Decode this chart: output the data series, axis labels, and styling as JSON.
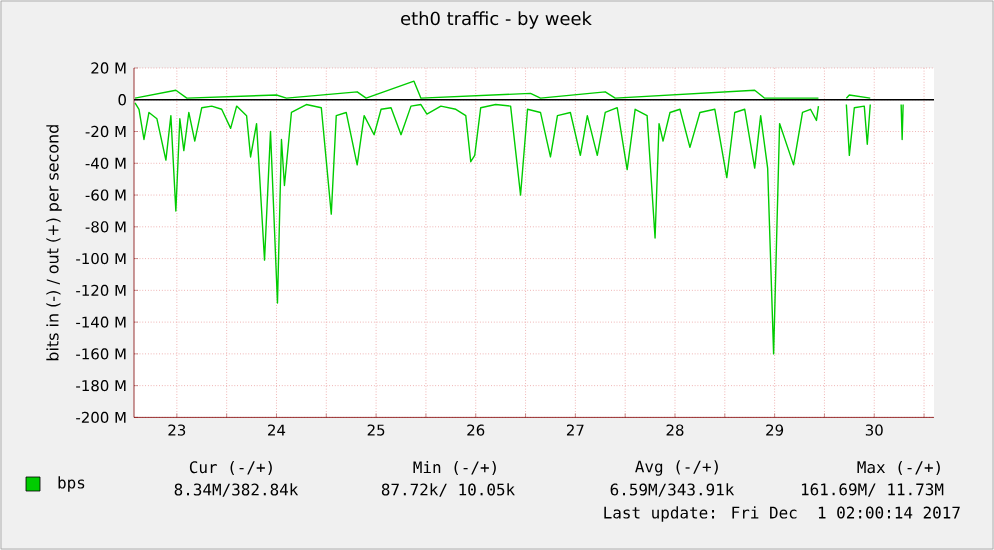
{
  "chart_data": {
    "type": "line",
    "title": "eth0 traffic - by week",
    "ylabel": "bits in (-) / out (+) per second",
    "xlim": [
      23.07,
      31.1
    ],
    "xticks": [
      {
        "value": 23.5,
        "label": "23"
      },
      {
        "value": 24,
        "label": null
      },
      {
        "value": 24.5,
        "label": "24"
      },
      {
        "value": 25,
        "label": null
      },
      {
        "value": 25.5,
        "label": "25"
      },
      {
        "value": 26,
        "label": null
      },
      {
        "value": 26.5,
        "label": "26"
      },
      {
        "value": 27,
        "label": null
      },
      {
        "value": 27.5,
        "label": "27"
      },
      {
        "value": 28,
        "label": null
      },
      {
        "value": 28.5,
        "label": "28"
      },
      {
        "value": 29,
        "label": null
      },
      {
        "value": 29.5,
        "label": "29"
      },
      {
        "value": 30,
        "label": null
      },
      {
        "value": 30.5,
        "label": "30"
      },
      {
        "value": 31,
        "label": null
      }
    ],
    "ylim": [
      -200,
      20
    ],
    "yticks": [
      {
        "value": -200,
        "label": "-200 M"
      },
      {
        "value": -180,
        "label": "-180 M"
      },
      {
        "value": -160,
        "label": "-160 M"
      },
      {
        "value": -140,
        "label": "-140 M"
      },
      {
        "value": -120,
        "label": "-120 M"
      },
      {
        "value": -100,
        "label": "-100 M"
      },
      {
        "value": -80,
        "label": "-80 M"
      },
      {
        "value": -60,
        "label": "-60 M"
      },
      {
        "value": -40,
        "label": "-40 M"
      },
      {
        "value": -20,
        "label": "-20 M"
      },
      0,
      {
        "value": 20,
        "label": "20 M"
      }
    ],
    "grid": true,
    "legend": "bottom",
    "marker": "none",
    "line_style": "solid",
    "ref_lines": [
      {
        "axis": "y",
        "value": 0,
        "color": "#000000"
      }
    ],
    "series": [
      {
        "name": "bps",
        "color": "#00cc00",
        "x": [
          23.08,
          23.12,
          23.17,
          23.22,
          23.3,
          23.39,
          23.44,
          23.49,
          23.53,
          23.57,
          23.62,
          23.68,
          23.75,
          23.85,
          23.95,
          24.04,
          24.1,
          24.2,
          24.24,
          24.3,
          24.38,
          24.44,
          24.51,
          24.55,
          24.58,
          24.65,
          24.8,
          24.95,
          25.05,
          25.1,
          25.2,
          25.31,
          25.38,
          25.48,
          25.55,
          25.65,
          25.75,
          25.85,
          25.95,
          26.01,
          26.15,
          26.3,
          26.4,
          26.45,
          26.49,
          26.55,
          26.7,
          26.85,
          26.95,
          27.02,
          27.15,
          27.25,
          27.32,
          27.45,
          27.55,
          27.62,
          27.72,
          27.8,
          27.92,
          28.02,
          28.1,
          28.22,
          28.3,
          28.34,
          28.38,
          28.45,
          28.55,
          28.65,
          28.75,
          28.9,
          29.02,
          29.1,
          29.2,
          29.3,
          29.36,
          29.43,
          29.49,
          29.55,
          29.69,
          29.78,
          29.86,
          29.92,
          29.94,
          30.05,
          30.22,
          30.25,
          30.3,
          30.4,
          30.43,
          30.46,
          30.6,
          30.77,
          30.78,
          30.79
        ],
        "values": [
          -2,
          -6,
          -25,
          -8,
          -12,
          -38,
          -10,
          -70,
          -12,
          -32,
          -8,
          -26,
          -5,
          -4,
          -6,
          -18,
          -4,
          -10,
          -36,
          -15,
          -101,
          -20,
          -128,
          -25,
          -54,
          -8,
          -3,
          -5,
          -72,
          -10,
          -8,
          -41,
          -10,
          -22,
          -6,
          -5,
          -22,
          -4,
          -3,
          -9,
          -4,
          -6,
          -10,
          -39,
          -35,
          -5,
          -3,
          -4,
          -60,
          -6,
          -8,
          -36,
          -10,
          -8,
          -35,
          -10,
          -35,
          -8,
          -5,
          -44,
          -6,
          -10,
          -87,
          -15,
          -26,
          -8,
          -6,
          -30,
          -8,
          -6,
          -49,
          -8,
          -6,
          -43,
          -10,
          -43,
          -160,
          -15,
          -41,
          -8,
          -6,
          -13,
          -4,
          null,
          -3,
          -35,
          -5,
          -4,
          -28,
          -3,
          null,
          -3,
          -25,
          -3
        ]
      },
      {
        "color": "#00cc00",
        "x": [
          23.08,
          23.49,
          23.6,
          24.5,
          24.6,
          25.31,
          25.4,
          25.88,
          25.95,
          27.05,
          27.15,
          27.8,
          27.9,
          29.3,
          29.4,
          29.94,
          30.05,
          30.22,
          30.25,
          30.46
        ],
        "values": [
          1,
          6,
          1,
          3,
          1,
          5,
          1,
          11.7,
          1,
          4,
          1,
          5,
          1,
          6,
          1,
          1,
          null,
          1,
          3,
          1
        ]
      }
    ],
    "annotations": [
      "Cur (-/+)",
      "Min (-/+)",
      "Avg (-/+)",
      "Max (-/+)",
      "8.34M/382.84k",
      "87.72k/ 10.05k",
      "6.59M/343.91k",
      "161.69M/ 11.73M",
      "Last update: Fri Dec  1 02:00:14 2017"
    ]
  }
}
